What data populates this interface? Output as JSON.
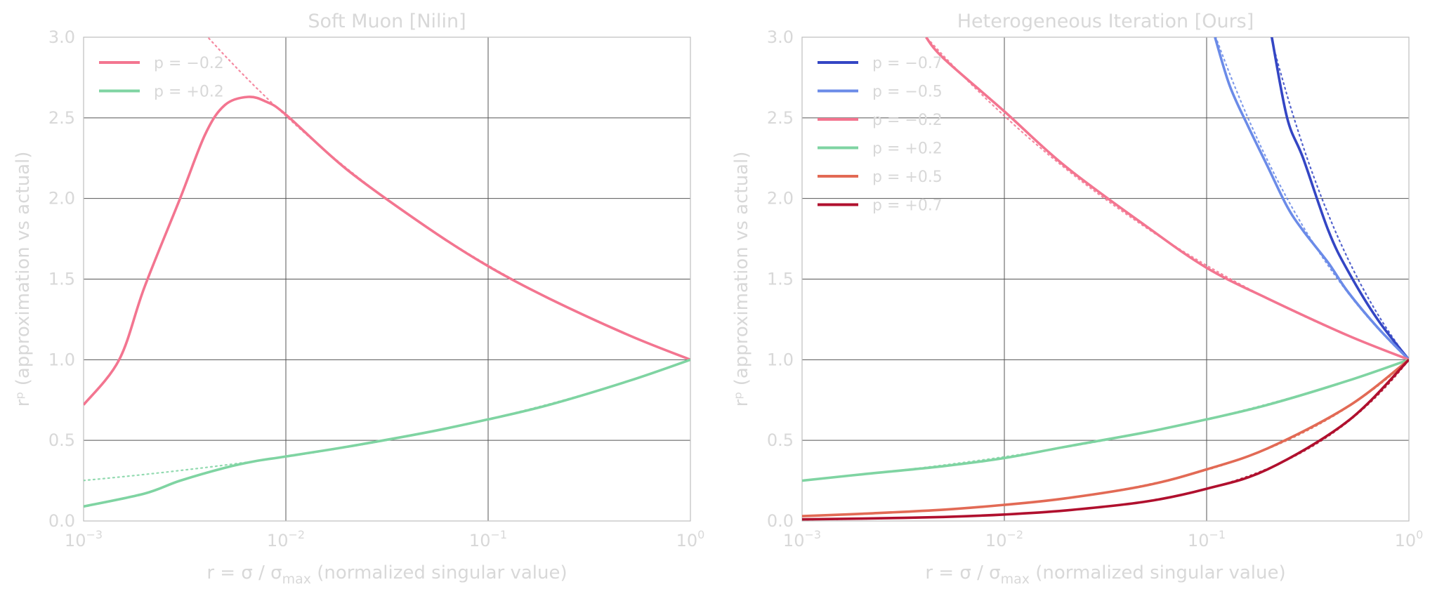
{
  "chart_data": [
    {
      "type": "line",
      "title": "Soft Muon [Nilin]",
      "xlabel": "r = σ / σmax (normalized singular value)",
      "xlabel_parts": {
        "main": "r = σ / σ",
        "sub": "max",
        "rest": " (normalized singular value)"
      },
      "ylabel": "rᵖ (approximation vs actual)",
      "x_scale": "log",
      "xlim": [
        0.001,
        1
      ],
      "ylim": [
        0,
        3.0
      ],
      "x_ticks": [
        {
          "value": 0.001,
          "base": "10",
          "exp": "−3"
        },
        {
          "value": 0.01,
          "base": "10",
          "exp": "−2"
        },
        {
          "value": 0.1,
          "base": "10",
          "exp": "−1"
        },
        {
          "value": 1,
          "base": "10",
          "exp": "0"
        }
      ],
      "y_ticks": [
        {
          "value": 0.0,
          "label": "0.0"
        },
        {
          "value": 0.5,
          "label": "0.5"
        },
        {
          "value": 1.0,
          "label": "1.0"
        },
        {
          "value": 1.5,
          "label": "1.5"
        },
        {
          "value": 2.0,
          "label": "2.0"
        },
        {
          "value": 2.5,
          "label": "2.5"
        },
        {
          "value": 3.0,
          "label": "3.0"
        }
      ],
      "grid": true,
      "legend_position": "top-left",
      "series": [
        {
          "name": "p = −0.2",
          "p": -0.2,
          "color": "#f37590",
          "approximation": [
            [
              0.001,
              0.72
            ],
            [
              0.0015,
              1.0
            ],
            [
              0.002,
              1.45
            ],
            [
              0.003,
              2.0
            ],
            [
              0.004,
              2.4
            ],
            [
              0.005,
              2.58
            ],
            [
              0.0065,
              2.63
            ],
            [
              0.008,
              2.6
            ],
            [
              0.01,
              2.52
            ],
            [
              0.02,
              2.18
            ],
            [
              0.05,
              1.82
            ],
            [
              0.1,
              1.58
            ],
            [
              0.2,
              1.38
            ],
            [
              0.5,
              1.15
            ],
            [
              1.0,
              1.0
            ]
          ],
          "actual_dotted": true
        },
        {
          "name": "p = +0.2",
          "p": 0.2,
          "color": "#7fd4a2",
          "approximation": [
            [
              0.001,
              0.09
            ],
            [
              0.002,
              0.17
            ],
            [
              0.003,
              0.25
            ],
            [
              0.005,
              0.33
            ],
            [
              0.007,
              0.37
            ],
            [
              0.01,
              0.4
            ],
            [
              0.02,
              0.46
            ],
            [
              0.05,
              0.55
            ],
            [
              0.1,
              0.63
            ],
            [
              0.2,
              0.72
            ],
            [
              0.5,
              0.87
            ],
            [
              1.0,
              1.0
            ]
          ],
          "actual_dotted": true
        }
      ]
    },
    {
      "type": "line",
      "title": "Heterogeneous Iteration [Ours]",
      "xlabel": "r = σ / σmax (normalized singular value)",
      "xlabel_parts": {
        "main": "r = σ / σ",
        "sub": "max",
        "rest": " (normalized singular value)"
      },
      "ylabel": "rᵖ (approximation vs actual)",
      "x_scale": "log",
      "xlim": [
        0.001,
        1
      ],
      "ylim": [
        0,
        3.0
      ],
      "x_ticks": [
        {
          "value": 0.001,
          "base": "10",
          "exp": "−3"
        },
        {
          "value": 0.01,
          "base": "10",
          "exp": "−2"
        },
        {
          "value": 0.1,
          "base": "10",
          "exp": "−1"
        },
        {
          "value": 1,
          "base": "10",
          "exp": "0"
        }
      ],
      "y_ticks": [
        {
          "value": 0.0,
          "label": "0.0"
        },
        {
          "value": 0.5,
          "label": "0.5"
        },
        {
          "value": 1.0,
          "label": "1.0"
        },
        {
          "value": 1.5,
          "label": "1.5"
        },
        {
          "value": 2.0,
          "label": "2.0"
        },
        {
          "value": 2.5,
          "label": "2.5"
        },
        {
          "value": 3.0,
          "label": "3.0"
        }
      ],
      "grid": true,
      "legend_position": "top-left",
      "series": [
        {
          "name": "p = −0.7",
          "p": -0.7,
          "color": "#3446c4",
          "approximation": [
            [
              0.21,
              3.0
            ],
            [
              0.25,
              2.5
            ],
            [
              0.3,
              2.25
            ],
            [
              0.4,
              1.8
            ],
            [
              0.5,
              1.55
            ],
            [
              0.7,
              1.25
            ],
            [
              1.0,
              1.0
            ]
          ],
          "actual_dotted": true
        },
        {
          "name": "p = −0.5",
          "p": -0.5,
          "color": "#6b8be8",
          "approximation": [
            [
              0.11,
              3.0
            ],
            [
              0.13,
              2.7
            ],
            [
              0.16,
              2.45
            ],
            [
              0.2,
              2.2
            ],
            [
              0.25,
              1.95
            ],
            [
              0.3,
              1.8
            ],
            [
              0.4,
              1.6
            ],
            [
              0.5,
              1.42
            ],
            [
              0.7,
              1.2
            ],
            [
              1.0,
              1.0
            ]
          ],
          "actual_dotted": true
        },
        {
          "name": "p = −0.2",
          "p": -0.2,
          "color": "#f37590",
          "approximation": [
            [
              0.0041,
              3.0
            ],
            [
              0.005,
              2.87
            ],
            [
              0.01,
              2.54
            ],
            [
              0.02,
              2.2
            ],
            [
              0.05,
              1.83
            ],
            [
              0.1,
              1.57
            ],
            [
              0.2,
              1.38
            ],
            [
              0.5,
              1.15
            ],
            [
              1.0,
              1.0
            ]
          ],
          "actual_dotted": true
        },
        {
          "name": "p = +0.2",
          "p": 0.2,
          "color": "#7fd4a2",
          "approximation": [
            [
              0.001,
              0.25
            ],
            [
              0.002,
              0.29
            ],
            [
              0.005,
              0.34
            ],
            [
              0.01,
              0.39
            ],
            [
              0.02,
              0.46
            ],
            [
              0.05,
              0.55
            ],
            [
              0.1,
              0.63
            ],
            [
              0.2,
              0.72
            ],
            [
              0.5,
              0.87
            ],
            [
              1.0,
              1.0
            ]
          ],
          "actual_dotted": true
        },
        {
          "name": "p = +0.5",
          "p": 0.5,
          "color": "#e26a55",
          "approximation": [
            [
              0.001,
              0.03
            ],
            [
              0.002,
              0.045
            ],
            [
              0.005,
              0.07
            ],
            [
              0.01,
              0.1
            ],
            [
              0.02,
              0.14
            ],
            [
              0.05,
              0.22
            ],
            [
              0.1,
              0.32
            ],
            [
              0.2,
              0.45
            ],
            [
              0.5,
              0.71
            ],
            [
              1.0,
              1.0
            ]
          ],
          "actual_dotted": true
        },
        {
          "name": "p = +0.7",
          "p": 0.7,
          "color": "#b0102e",
          "approximation": [
            [
              0.001,
              0.01
            ],
            [
              0.002,
              0.015
            ],
            [
              0.005,
              0.025
            ],
            [
              0.01,
              0.04
            ],
            [
              0.02,
              0.065
            ],
            [
              0.05,
              0.12
            ],
            [
              0.1,
              0.2
            ],
            [
              0.2,
              0.32
            ],
            [
              0.5,
              0.62
            ],
            [
              1.0,
              1.0
            ]
          ],
          "actual_dotted": true
        }
      ]
    }
  ]
}
